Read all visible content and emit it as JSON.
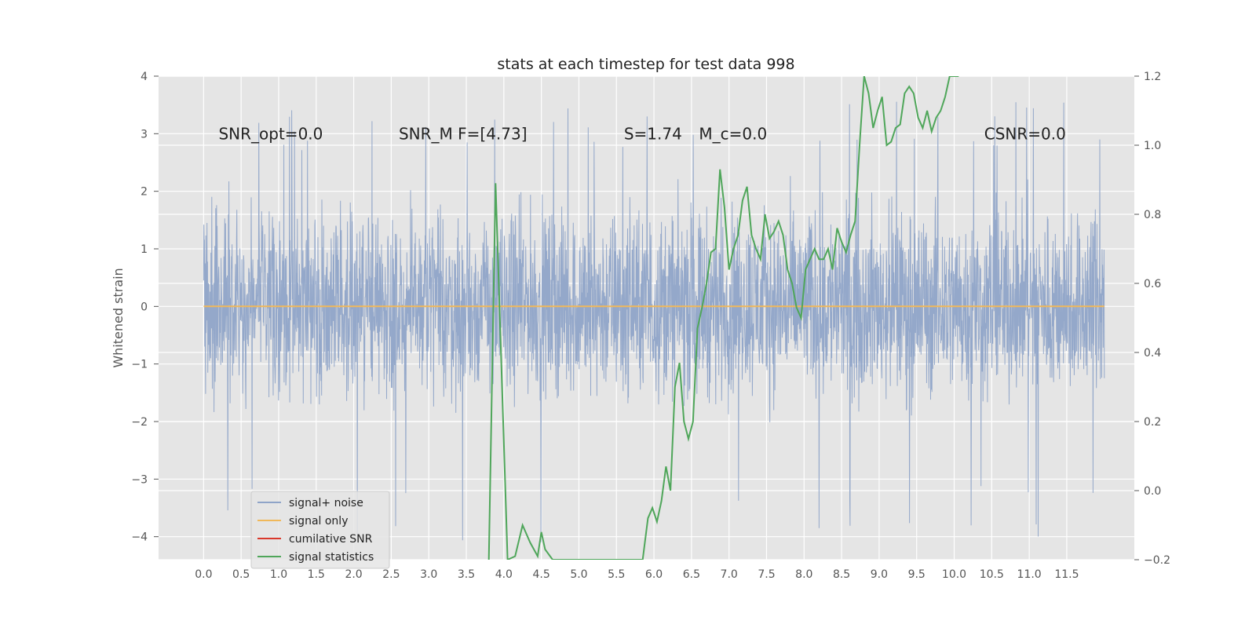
{
  "chart_data": {
    "type": "line",
    "title": "stats at each timestep for test data 998",
    "ylabel": "Whitened strain",
    "xlabel": "",
    "xlim": [
      -0.6,
      12.4
    ],
    "ylim": [
      -4.4,
      4.0
    ],
    "y2lim": [
      -0.2,
      1.2
    ],
    "x_ticks": [
      "0.0",
      "0.5",
      "1.0",
      "1.5",
      "2.0",
      "2.5",
      "3.0",
      "3.5",
      "4.0",
      "4.5",
      "5.0",
      "5.5",
      "6.0",
      "6.5",
      "7.0",
      "7.5",
      "8.0",
      "8.5",
      "9.0",
      "9.5",
      "10.0",
      "10.5",
      "11.0",
      "11.5"
    ],
    "x_tick_values": [
      0.0,
      0.5,
      1.0,
      1.5,
      2.0,
      2.5,
      3.0,
      3.5,
      4.0,
      4.5,
      5.0,
      5.5,
      6.0,
      6.5,
      7.0,
      7.5,
      8.0,
      8.5,
      9.0,
      9.5,
      10.0,
      10.5,
      11.0,
      11.5
    ],
    "y_ticks": [
      "4",
      "3",
      "2",
      "1",
      "0",
      "−1",
      "−2",
      "−3",
      "−4"
    ],
    "y_tick_values": [
      4,
      3,
      2,
      1,
      0,
      -1,
      -2,
      -3,
      -4
    ],
    "y2_ticks": [
      "1.2",
      "1.0",
      "0.8",
      "0.6",
      "0.4",
      "0.2",
      "0.0",
      "−0.2"
    ],
    "y2_tick_values": [
      1.2,
      1.0,
      0.8,
      0.6,
      0.4,
      0.2,
      0.0,
      -0.2
    ],
    "annotations": [
      {
        "text": "SNR_opt=0.0",
        "x": 0.2,
        "y": 2.9
      },
      {
        "text": "SNR_M F=[4.73]",
        "x": 2.6,
        "y": 2.9
      },
      {
        "text": "S=1.74",
        "x": 5.6,
        "y": 2.9
      },
      {
        "text": "M_c=0.0",
        "x": 6.6,
        "y": 2.9
      },
      {
        "text": "CSNR=0.0",
        "x": 10.4,
        "y": 2.9
      }
    ],
    "series": [
      {
        "name": "signal+ noise",
        "color": "#8fa4c8",
        "axis": "left",
        "x_range": [
          0.0,
          12.0
        ],
        "typical_range": [
          -2.2,
          2.4
        ],
        "extreme_range": [
          -4.1,
          3.6
        ]
      },
      {
        "name": "signal only",
        "color": "#f0b85a",
        "axis": "left",
        "x": [
          0.0,
          12.0
        ],
        "y": [
          0.0,
          0.0
        ]
      },
      {
        "name": "cumilative SNR",
        "color": "#d9382b",
        "axis": "right",
        "x": [],
        "y": []
      },
      {
        "name": "signal statistics",
        "color": "#4fa65a",
        "axis": "right",
        "x": [
          3.8,
          3.89,
          4.05,
          4.15,
          4.25,
          4.35,
          4.45,
          4.5,
          4.55,
          4.65,
          5.85,
          5.92,
          5.98,
          6.04,
          6.1,
          6.16,
          6.22,
          6.28,
          6.34,
          6.4,
          6.46,
          6.52,
          6.58,
          6.64,
          6.7,
          6.76,
          6.82,
          6.88,
          6.94,
          7.0,
          7.06,
          7.12,
          7.18,
          7.24,
          7.3,
          7.36,
          7.42,
          7.48,
          7.54,
          7.6,
          7.66,
          7.72,
          7.78,
          7.84,
          7.9,
          7.96,
          8.02,
          8.08,
          8.14,
          8.2,
          8.26,
          8.32,
          8.38,
          8.44,
          8.5,
          8.56,
          8.62,
          8.68,
          8.74,
          8.8,
          8.86,
          8.92,
          8.98,
          9.04,
          9.1,
          9.16,
          9.22,
          9.28,
          9.34,
          9.4,
          9.46,
          9.52,
          9.58,
          9.64,
          9.7,
          9.76,
          9.82,
          9.88,
          9.94,
          10.0,
          10.06
        ],
        "y": [
          -0.2,
          0.89,
          -0.2,
          -0.19,
          -0.1,
          -0.15,
          -0.19,
          -0.12,
          -0.17,
          -0.2,
          -0.2,
          -0.08,
          -0.05,
          -0.09,
          -0.03,
          0.07,
          0.0,
          0.3,
          0.37,
          0.2,
          0.15,
          0.2,
          0.47,
          0.53,
          0.6,
          0.69,
          0.7,
          0.93,
          0.82,
          0.64,
          0.7,
          0.74,
          0.84,
          0.88,
          0.74,
          0.7,
          0.67,
          0.8,
          0.73,
          0.75,
          0.78,
          0.74,
          0.64,
          0.6,
          0.53,
          0.5,
          0.64,
          0.67,
          0.7,
          0.67,
          0.67,
          0.7,
          0.64,
          0.76,
          0.72,
          0.69,
          0.74,
          0.78,
          1.0,
          1.2,
          1.15,
          1.05,
          1.1,
          1.14,
          1.0,
          1.01,
          1.05,
          1.06,
          1.15,
          1.17,
          1.15,
          1.08,
          1.05,
          1.1,
          1.04,
          1.08,
          1.1,
          1.14,
          1.2,
          1.2,
          1.2
        ]
      }
    ],
    "legend": {
      "placement": "lower-left"
    },
    "grid": true,
    "background": "#e5e5e5"
  }
}
